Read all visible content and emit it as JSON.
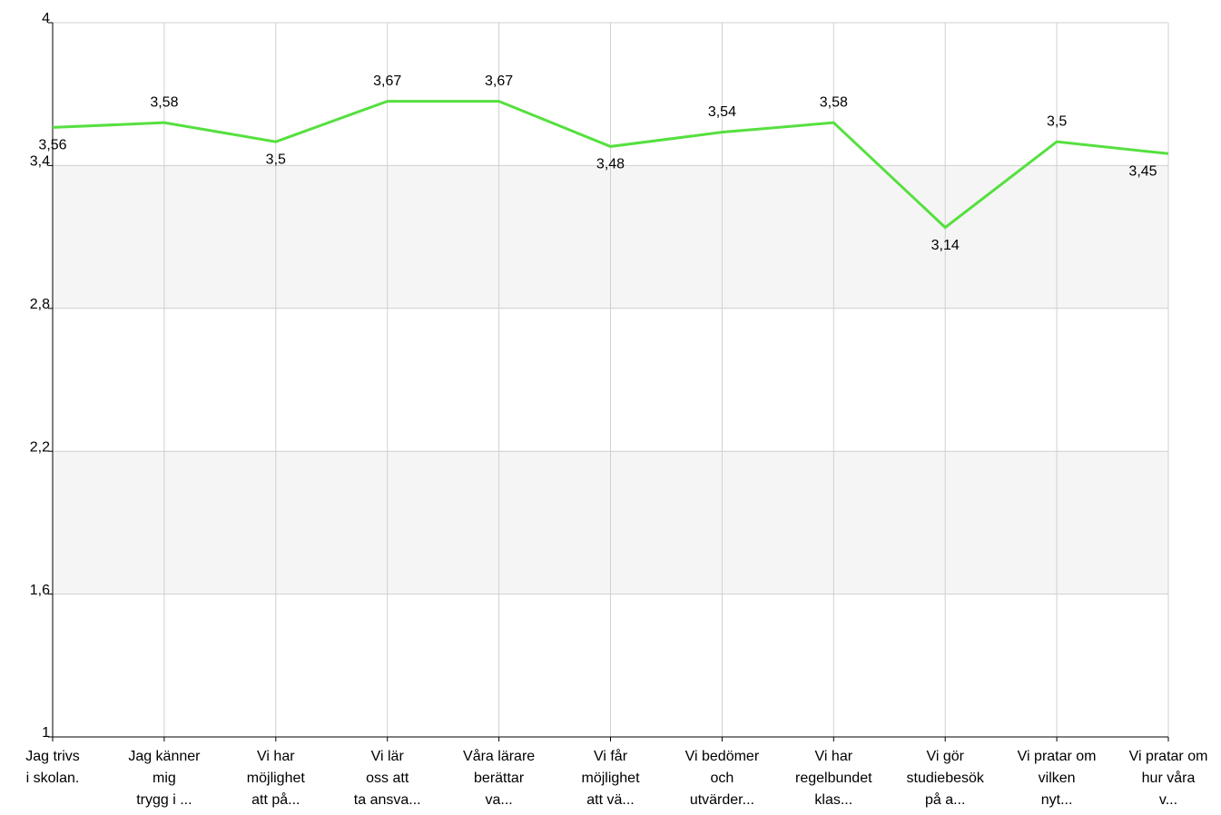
{
  "chart_data": {
    "type": "line",
    "categories": [
      [
        "Jag trivs",
        "i skolan."
      ],
      [
        "Jag känner",
        "mig",
        "trygg i ..."
      ],
      [
        "Vi har",
        "möjlighet",
        "att på..."
      ],
      [
        "Vi lär",
        "oss att",
        "ta ansva..."
      ],
      [
        "Våra lärare",
        "berättar",
        "va..."
      ],
      [
        "Vi får",
        "möjlighet",
        "att vä..."
      ],
      [
        "Vi bedömer",
        "och",
        "utvärder..."
      ],
      [
        "Vi har",
        "regelbundet",
        "klas..."
      ],
      [
        "Vi gör",
        "studiebesök",
        "på a..."
      ],
      [
        "Vi pratar om",
        "vilken",
        "nyt..."
      ],
      [
        "Vi pratar om",
        "hur våra",
        "v..."
      ]
    ],
    "series": [
      {
        "color": "#55e03f",
        "values": [
          3.56,
          3.58,
          3.5,
          3.67,
          3.67,
          3.48,
          3.54,
          3.58,
          3.14,
          3.5,
          3.45
        ],
        "value_labels": [
          "3,56",
          "3,58",
          "3,5",
          "3,67",
          "3,67",
          "3,48",
          "3,54",
          "3,58",
          "3,14",
          "3,5",
          "3,45"
        ]
      }
    ],
    "ylim": [
      1,
      4
    ],
    "yticks": [
      {
        "value": 1,
        "label": "1"
      },
      {
        "value": 1.6,
        "label": "1,6"
      },
      {
        "value": 2.2,
        "label": "2,2"
      },
      {
        "value": 2.8,
        "label": "2,8"
      },
      {
        "value": 3.4,
        "label": "3,4"
      },
      {
        "value": 4,
        "label": "4"
      }
    ],
    "grid": true
  }
}
